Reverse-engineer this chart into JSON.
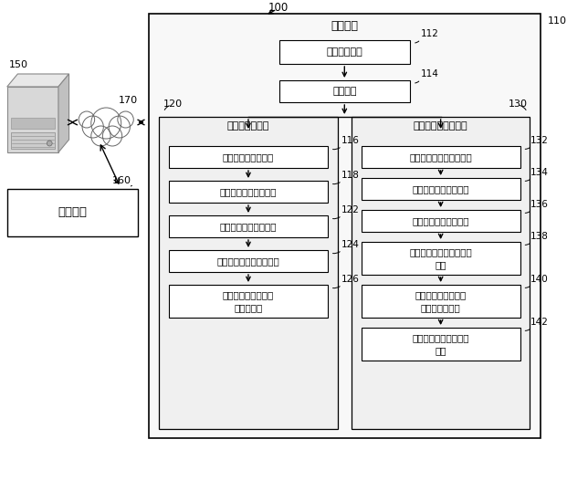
{
  "bg_color": "#ffffff",
  "label_100": "100",
  "label_110": "110",
  "label_computing": "计算设备",
  "label_112": "112",
  "label_data_recv": "数据接收单元",
  "label_114": "114",
  "label_filter": "过滤单元",
  "label_120": "120",
  "label_ref_genome": "参考基因组单元",
  "label_116": "116",
  "label_ref_align": "参考基因组比对单元",
  "label_118": "118",
  "label_first_extract": "第一提取信息生成单元",
  "label_122": "122",
  "label_second_extract": "第二提取信息生成单元",
  "label_124": "124",
  "label_ref_base_stat": "参考基因组碹基统计单元",
  "label_126": "126",
  "label_ref_methyl_l1": "参考基因组甲基化水",
  "label_ref_methyl_l2": "平计算单元",
  "label_130": "130",
  "label_qc_genome": "质控序列基因组单元",
  "label_132": "132",
  "label_qc_align": "质控序列基因组比对单元",
  "label_134": "134",
  "label_third_extract": "第三提取信息生成单元",
  "label_136": "136",
  "label_fourth_extract": "第四提取信息生成单元",
  "label_138": "138",
  "label_qc_base_stat_l1": "质控序列基因组碹基统计",
  "label_qc_base_stat_l2": "单元",
  "label_140": "140",
  "label_qc_methyl_l1": "质控序列基因组甲基",
  "label_qc_methyl_l2": "化水平计算单元",
  "label_142": "142",
  "label_convert_l1": "转化效率和错误率确定",
  "label_convert_l2": "单元",
  "label_150": "150",
  "label_160": "160",
  "label_170": "170",
  "label_seq_unit": "测序单元"
}
